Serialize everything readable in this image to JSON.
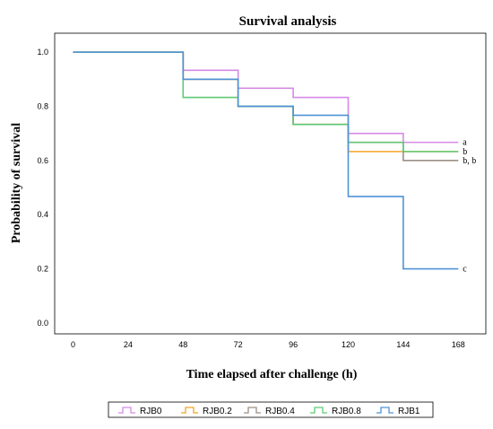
{
  "chart_data": {
    "type": "line",
    "title": "Survival analysis",
    "xlabel": "Time elapsed after challenge (h)",
    "ylabel": "Probability of survival",
    "x_ticks": [
      0,
      24,
      48,
      72,
      96,
      120,
      144,
      168
    ],
    "y_ticks": [
      "0.0",
      "0.2",
      "0.4",
      "0.6",
      "0.8",
      "1.0"
    ],
    "xlim": [
      -8,
      180
    ],
    "ylim": [
      -0.04,
      1.07
    ],
    "grid": false,
    "legend_position": "bottom",
    "series": [
      {
        "name": "RJB0",
        "color": "#d58ae6",
        "x": [
          0,
          48,
          72,
          96,
          120,
          144,
          168
        ],
        "y": [
          1.0,
          0.933,
          0.867,
          0.833,
          0.7,
          0.667,
          0.667
        ],
        "annotation": "a"
      },
      {
        "name": "RJB0.2",
        "color": "#f5a425",
        "x": [
          0,
          48,
          72,
          96,
          120,
          144,
          168
        ],
        "y": [
          1.0,
          0.9,
          0.8,
          0.733,
          0.633,
          0.633,
          0.633
        ],
        "annotation": ""
      },
      {
        "name": "RJB0.4",
        "color": "#9c8f85",
        "x": [
          0,
          48,
          72,
          96,
          120,
          144,
          168
        ],
        "y": [
          1.0,
          0.9,
          0.8,
          0.733,
          0.667,
          0.6,
          0.6
        ],
        "annotation": "b, b"
      },
      {
        "name": "RJB0.8",
        "color": "#5fc977",
        "x": [
          0,
          48,
          72,
          96,
          120,
          144,
          168
        ],
        "y": [
          1.0,
          0.833,
          0.8,
          0.733,
          0.667,
          0.633,
          0.633
        ],
        "annotation": "b"
      },
      {
        "name": "RJB1",
        "color": "#4f93d6",
        "x": [
          0,
          48,
          72,
          96,
          120,
          144,
          168
        ],
        "y": [
          1.0,
          0.9,
          0.8,
          0.767,
          0.467,
          0.2,
          0.2
        ],
        "annotation": "c"
      }
    ]
  }
}
